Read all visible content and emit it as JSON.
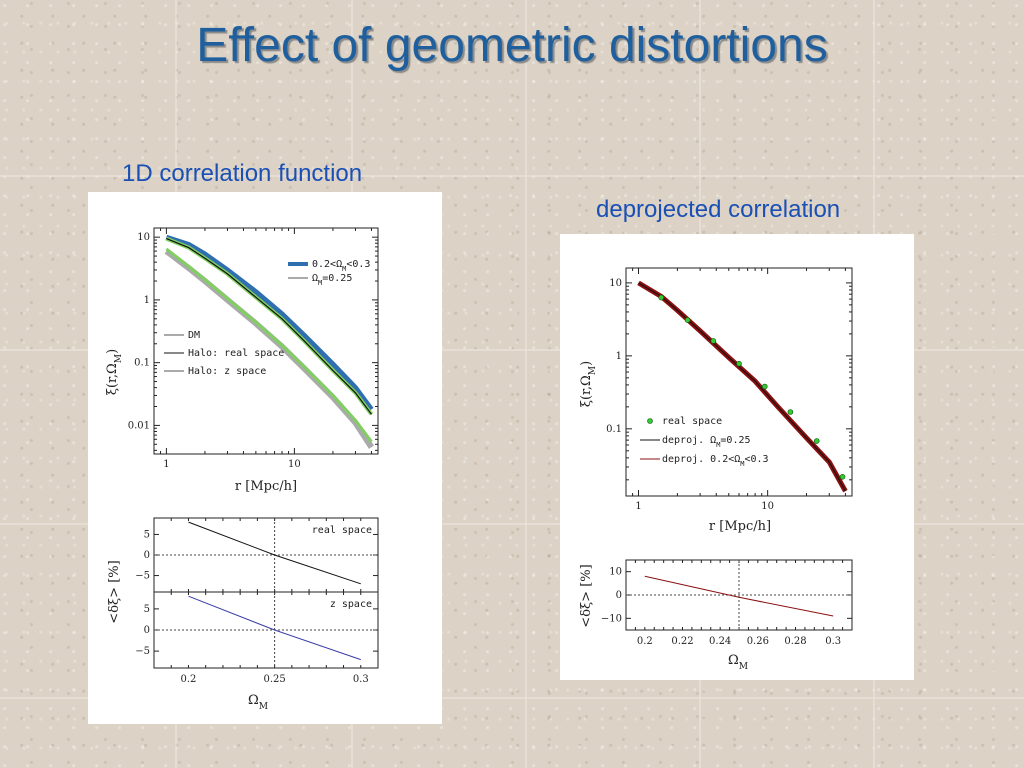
{
  "title": "Effect of geometric distortions",
  "captions": {
    "left": "1D correlation function",
    "right": "deprojected correlation"
  },
  "colors": {
    "title": "#1f5f9e",
    "caption": "#1a4fb5",
    "dm": "#aaaaaa",
    "halo_real": "#111111",
    "halo_z": "#80d060",
    "omega_range": "#2f6fb0",
    "deproj_fixed": "#111111",
    "deproj_range": "#8b1010",
    "real_points": "#33cc33"
  },
  "chart_data": [
    {
      "type": "line",
      "xscale": "log",
      "yscale": "log",
      "xlim": [
        0.8,
        45
      ],
      "ylim": [
        0.0035,
        14
      ],
      "xlabel": "r [Mpc/h]",
      "ylabel": "ξ(r,Ω",
      "ylabel_sub": "M",
      "ylabel_close": ")",
      "xticks": [
        {
          "v": 1,
          "label": "1"
        },
        {
          "v": 10,
          "label": "10"
        }
      ],
      "yticks": [
        {
          "v": 10,
          "label": "10"
        },
        {
          "v": 1,
          "label": "1"
        },
        {
          "v": 0.1,
          "label": "0.1"
        },
        {
          "v": 0.01,
          "label": "0.01"
        }
      ],
      "legend_top": [
        {
          "pre": "0.2<Ω",
          "sub": "M",
          "post": "<0.3"
        },
        {
          "pre": "Ω",
          "sub": "M",
          "post": "=0.25"
        }
      ],
      "legend_bottom": [
        "DM",
        "Halo: real space",
        "Halo: z space"
      ],
      "series": [
        {
          "name": "DM",
          "x": [
            1,
            1.5,
            2,
            3,
            5,
            8,
            12,
            20,
            30,
            40
          ],
          "y": [
            6.0,
            3.2,
            2.0,
            1.0,
            0.42,
            0.18,
            0.08,
            0.028,
            0.011,
            0.0045
          ]
        },
        {
          "name": "Halo: real space",
          "x": [
            1,
            1.5,
            2,
            3,
            5,
            8,
            12,
            20,
            30,
            40
          ],
          "y": [
            9.5,
            6.8,
            4.6,
            2.6,
            1.1,
            0.5,
            0.22,
            0.075,
            0.033,
            0.015
          ]
        },
        {
          "name": "Halo: z space",
          "x": [
            1,
            1.5,
            2,
            3,
            5,
            8,
            12,
            20,
            30,
            40
          ],
          "y": [
            6.5,
            3.4,
            2.1,
            1.05,
            0.44,
            0.19,
            0.085,
            0.03,
            0.012,
            0.0055
          ]
        },
        {
          "name": "0.2<ΩM<0.3",
          "x": [
            1,
            1.5,
            2,
            3,
            5,
            8,
            12,
            20,
            30,
            40
          ],
          "y": [
            10,
            7.6,
            5.4,
            3.0,
            1.35,
            0.6,
            0.27,
            0.095,
            0.04,
            0.018
          ]
        }
      ]
    },
    {
      "type": "line",
      "xlim": [
        0.18,
        0.31
      ],
      "ylim": [
        -9,
        9
      ],
      "ylabel": "<δξ> [%]",
      "xlabel": "Ω",
      "xlabel_sub": "M",
      "xticks": [
        {
          "v": 0.2,
          "label": "0.2"
        },
        {
          "v": 0.25,
          "label": "0.25"
        },
        {
          "v": 0.3,
          "label": "0.3"
        }
      ],
      "yticks": [
        {
          "v": 5,
          "label": "5"
        },
        {
          "v": 0,
          "label": "0"
        },
        {
          "v": -5,
          "label": "−5"
        }
      ],
      "panels": [
        {
          "label": "real space",
          "x": [
            0.2,
            0.25,
            0.3
          ],
          "y": [
            8,
            0,
            -7
          ]
        },
        {
          "label": "z space",
          "x": [
            0.2,
            0.25,
            0.3
          ],
          "y": [
            8,
            0,
            -7
          ]
        }
      ],
      "ref_x": 0.25,
      "ref_y": 0
    },
    {
      "type": "line",
      "xscale": "log",
      "yscale": "log",
      "xlim": [
        0.8,
        45
      ],
      "ylim": [
        0.012,
        16
      ],
      "xlabel": "r [Mpc/h]",
      "ylabel": "ξ(r,Ω",
      "ylabel_sub": "M",
      "ylabel_close": ")",
      "xticks": [
        {
          "v": 1,
          "label": "1"
        },
        {
          "v": 10,
          "label": "10"
        }
      ],
      "yticks": [
        {
          "v": 10,
          "label": "10"
        },
        {
          "v": 1,
          "label": "1"
        },
        {
          "v": 0.1,
          "label": "0.1"
        }
      ],
      "legend": [
        {
          "pre": "real space",
          "sub": "",
          "post": ""
        },
        {
          "pre": "deproj. Ω",
          "sub": "M",
          "post": "=0.25"
        },
        {
          "pre": "deproj. 0.2<Ω",
          "sub": "M",
          "post": "<0.3"
        }
      ],
      "series": [
        {
          "name": "deproj. 0.2<ΩM<0.3",
          "x": [
            1,
            1.5,
            2,
            3,
            5,
            8,
            12,
            20,
            30,
            40
          ],
          "y": [
            10,
            6.5,
            4.2,
            2.2,
            0.95,
            0.45,
            0.2,
            0.075,
            0.035,
            0.014
          ]
        },
        {
          "name": "deproj. ΩM=0.25",
          "x": [
            1,
            1.5,
            2,
            3,
            5,
            8,
            12,
            20,
            30,
            40
          ],
          "y": [
            10,
            6.5,
            4.2,
            2.2,
            0.95,
            0.45,
            0.2,
            0.075,
            0.035,
            0.014
          ]
        },
        {
          "name": "real space",
          "type": "scatter",
          "x": [
            1.5,
            2.4,
            3.8,
            6,
            9.5,
            15,
            24,
            38
          ],
          "y": [
            6.3,
            3.1,
            1.6,
            0.78,
            0.38,
            0.17,
            0.068,
            0.022
          ]
        }
      ]
    },
    {
      "type": "line",
      "xlim": [
        0.19,
        0.31
      ],
      "ylim": [
        -15,
        15
      ],
      "ylabel": "<δξ> [%]",
      "xlabel": "Ω",
      "xlabel_sub": "M",
      "xticks": [
        {
          "v": 0.2,
          "label": "0.2"
        },
        {
          "v": 0.22,
          "label": "0.22"
        },
        {
          "v": 0.24,
          "label": "0.24"
        },
        {
          "v": 0.26,
          "label": "0.26"
        },
        {
          "v": 0.28,
          "label": "0.28"
        },
        {
          "v": 0.3,
          "label": "0.3"
        }
      ],
      "yticks": [
        {
          "v": 10,
          "label": "10"
        },
        {
          "v": 0,
          "label": "0"
        },
        {
          "v": -10,
          "label": "−10"
        }
      ],
      "x": [
        0.2,
        0.25,
        0.3
      ],
      "y": [
        8,
        -1,
        -9
      ],
      "ref_x": 0.25,
      "ref_y": 0
    }
  ]
}
